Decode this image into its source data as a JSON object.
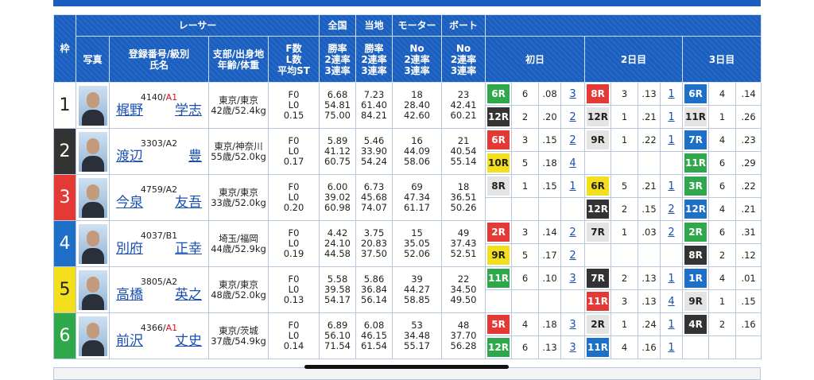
{
  "header": {
    "frame": "枠",
    "racer": "レーサー",
    "national": "全国",
    "local": "当地",
    "motor": "モーター",
    "boat": "ボート",
    "photo": "写真",
    "reg_name": [
      "登録番号/級別",
      "氏名"
    ],
    "branch_age": [
      "支部/出身地",
      "年齢/体重"
    ],
    "fl_st": [
      "F数",
      "L数",
      "平均ST"
    ],
    "national_cols": [
      "勝率",
      "2連率",
      "3連率"
    ],
    "local_cols": [
      "勝率",
      "2連率",
      "3連率"
    ],
    "motor_cols": [
      "No",
      "2連率",
      "3連率"
    ],
    "boat_cols": [
      "No",
      "2連率",
      "3連率"
    ],
    "days": [
      "初日",
      "2日目",
      "3日目"
    ]
  },
  "racers": [
    {
      "waku": "1",
      "waku_color": "#ffffff",
      "waku_fg": "#222222",
      "reg": "4140/",
      "class": "A1",
      "class_color": "#e01010",
      "surname": "梶野",
      "given": "学志",
      "branch": "東京/東京",
      "age_weight": "42歳/52.4kg",
      "fl_st": [
        "F0",
        "L0",
        "0.15"
      ],
      "national": [
        "6.68",
        "54.81",
        "75.00"
      ],
      "local": [
        "7.23",
        "61.40",
        "84.21"
      ],
      "motor": [
        "18",
        "28.40",
        "42.60"
      ],
      "boat": [
        "23",
        "42.41",
        "60.21"
      ],
      "days": [
        [
          {
            "race": "6R",
            "color": "#2ea84a",
            "course": "6",
            "st": ".08",
            "result": "3"
          },
          {
            "race": "12R",
            "color": "#333333",
            "course": "2",
            "st": ".20",
            "result": "2"
          }
        ],
        [
          {
            "race": "8R",
            "color": "#e53935",
            "course": "3",
            "st": ".13",
            "result": "1"
          },
          {
            "race": "12R",
            "color": "#e4e4e4",
            "course": "1",
            "st": ".21",
            "result": "1"
          }
        ],
        [
          {
            "race": "6R",
            "color": "#1e6fc7",
            "course": "4",
            "st": ".14"
          },
          {
            "race": "11R",
            "color": "#e4e4e4",
            "course": "1",
            "st": ".26"
          }
        ]
      ]
    },
    {
      "waku": "2",
      "waku_color": "#333333",
      "waku_fg": "#ffffff",
      "reg": "3303/",
      "class": "A2",
      "class_color": "#222222",
      "surname": "渡辺",
      "given": "豊",
      "branch": "東京/神奈川",
      "age_weight": "55歳/52.0kg",
      "fl_st": [
        "F0",
        "L0",
        "0.17"
      ],
      "national": [
        "5.89",
        "41.12",
        "60.75"
      ],
      "local": [
        "5.46",
        "33.90",
        "54.24"
      ],
      "motor": [
        "16",
        "44.09",
        "58.06"
      ],
      "boat": [
        "21",
        "40.54",
        "55.14"
      ],
      "days": [
        [
          {
            "race": "6R",
            "color": "#e53935",
            "course": "3",
            "st": ".15",
            "result": "2"
          },
          {
            "race": "10R",
            "color": "#f3df1c",
            "course": "5",
            "st": ".18",
            "result": "4"
          }
        ],
        [
          {
            "race": "9R",
            "color": "#e4e4e4",
            "course": "1",
            "st": ".22",
            "result": "1"
          }
        ],
        [
          {
            "race": "7R",
            "color": "#1e6fc7",
            "course": "4",
            "st": ".23"
          },
          {
            "race": "11R",
            "color": "#2ea84a",
            "course": "6",
            "st": ".29"
          }
        ]
      ]
    },
    {
      "waku": "3",
      "waku_color": "#e53935",
      "waku_fg": "#ffffff",
      "reg": "4759/",
      "class": "A2",
      "class_color": "#222222",
      "surname": "今泉",
      "given": "友吾",
      "branch": "東京/東京",
      "age_weight": "33歳/52.0kg",
      "fl_st": [
        "F0",
        "L0",
        "0.20"
      ],
      "national": [
        "6.00",
        "39.02",
        "60.98"
      ],
      "local": [
        "6.73",
        "45.68",
        "74.07"
      ],
      "motor": [
        "69",
        "47.34",
        "61.17"
      ],
      "boat": [
        "18",
        "36.51",
        "50.26"
      ],
      "days": [
        [
          {
            "race": "8R",
            "color": "#e4e4e4",
            "course": "1",
            "st": ".15",
            "result": "1"
          }
        ],
        [
          {
            "race": "6R",
            "color": "#f3df1c",
            "course": "5",
            "st": ".21",
            "result": "1"
          },
          {
            "race": "12R",
            "color": "#333333",
            "course": "2",
            "st": ".15",
            "result": "2"
          }
        ],
        [
          {
            "race": "3R",
            "color": "#2ea84a",
            "course": "6",
            "st": ".22"
          },
          {
            "race": "12R",
            "color": "#1e6fc7",
            "course": "4",
            "st": ".21"
          }
        ]
      ]
    },
    {
      "waku": "4",
      "waku_color": "#1e6fc7",
      "waku_fg": "#ffffff",
      "reg": "4037/",
      "class": "B1",
      "class_color": "#222222",
      "surname": "別府",
      "given": "正幸",
      "branch": "埼玉/福岡",
      "age_weight": "44歳/52.9kg",
      "fl_st": [
        "F0",
        "L0",
        "0.19"
      ],
      "national": [
        "4.42",
        "24.10",
        "44.58"
      ],
      "local": [
        "3.75",
        "20.83",
        "37.50"
      ],
      "motor": [
        "15",
        "35.05",
        "52.06"
      ],
      "boat": [
        "49",
        "37.43",
        "52.51"
      ],
      "days": [
        [
          {
            "race": "2R",
            "color": "#e53935",
            "course": "3",
            "st": ".14",
            "result": "2"
          },
          {
            "race": "9R",
            "color": "#f3df1c",
            "course": "5",
            "st": ".17",
            "result": "2"
          }
        ],
        [
          {
            "race": "7R",
            "color": "#e4e4e4",
            "course": "1",
            "st": ".03",
            "result": "2"
          }
        ],
        [
          {
            "race": "2R",
            "color": "#2ea84a",
            "course": "6",
            "st": ".31"
          },
          {
            "race": "8R",
            "color": "#333333",
            "course": "2",
            "st": ".12"
          }
        ]
      ]
    },
    {
      "waku": "5",
      "waku_color": "#f3df1c",
      "waku_fg": "#222222",
      "reg": "3805/",
      "class": "A2",
      "class_color": "#222222",
      "surname": "高橋",
      "given": "英之",
      "branch": "東京/東京",
      "age_weight": "48歳/52.0kg",
      "fl_st": [
        "F0",
        "L0",
        "0.13"
      ],
      "national": [
        "5.58",
        "39.58",
        "54.17"
      ],
      "local": [
        "5.86",
        "36.84",
        "56.14"
      ],
      "motor": [
        "39",
        "44.27",
        "58.85"
      ],
      "boat": [
        "22",
        "34.50",
        "49.50"
      ],
      "days": [
        [
          {
            "race": "11R",
            "color": "#2ea84a",
            "course": "6",
            "st": ".10",
            "result": "3"
          }
        ],
        [
          {
            "race": "7R",
            "color": "#333333",
            "course": "2",
            "st": ".13",
            "result": "1"
          },
          {
            "race": "11R",
            "color": "#e53935",
            "course": "3",
            "st": ".13",
            "result": "4"
          }
        ],
        [
          {
            "race": "1R",
            "color": "#1e6fc7",
            "course": "4",
            "st": ".01"
          },
          {
            "race": "9R",
            "color": "#e4e4e4",
            "course": "1",
            "st": ".15"
          }
        ]
      ]
    },
    {
      "waku": "6",
      "waku_color": "#2ea84a",
      "waku_fg": "#ffffff",
      "reg": "4366/",
      "class": "A1",
      "class_color": "#e01010",
      "surname": "前沢",
      "given": "丈史",
      "branch": "東京/茨城",
      "age_weight": "37歳/54.9kg",
      "fl_st": [
        "F0",
        "L0",
        "0.14"
      ],
      "national": [
        "6.89",
        "56.10",
        "71.54"
      ],
      "local": [
        "6.08",
        "46.15",
        "61.54"
      ],
      "motor": [
        "53",
        "34.48",
        "55.17"
      ],
      "boat": [
        "48",
        "37.70",
        "56.28"
      ],
      "days": [
        [
          {
            "race": "5R",
            "color": "#e53935",
            "course": "4",
            "st": ".18",
            "result": "3"
          },
          {
            "race": "12R",
            "color": "#2ea84a",
            "course": "6",
            "st": ".13",
            "result": "3"
          }
        ],
        [
          {
            "race": "2R",
            "color": "#e4e4e4",
            "course": "1",
            "st": ".24",
            "result": "1"
          },
          {
            "race": "11R",
            "color": "#1e6fc7",
            "course": "4",
            "st": ".16",
            "result": "1"
          }
        ],
        [
          {
            "race": "4R",
            "color": "#333333",
            "course": "2",
            "st": ".16"
          }
        ]
      ]
    }
  ]
}
